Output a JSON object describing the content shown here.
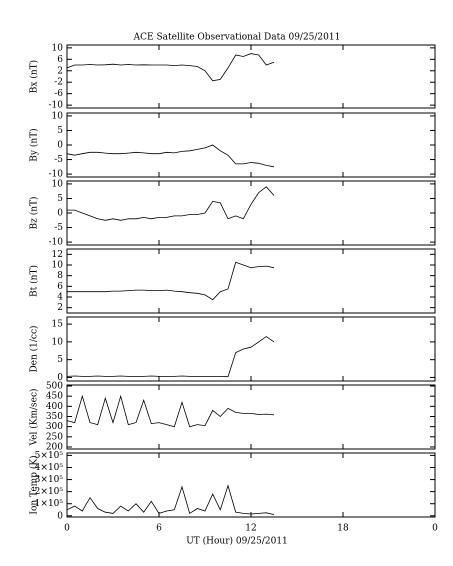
{
  "chart_data": [
    {
      "type": "line",
      "title": "ACE Satellite Observational Data   09/25/2011",
      "ylabel": "Bx (nT)",
      "color": "#000000",
      "x": [
        0,
        0.5,
        1,
        1.5,
        2,
        2.5,
        3,
        3.5,
        4,
        4.5,
        5,
        5.5,
        6,
        6.5,
        7,
        7.5,
        8,
        8.5,
        9,
        9.5,
        10,
        10.5,
        11,
        11.5,
        12,
        12.5,
        13,
        13.5
      ],
      "values": [
        3,
        4,
        4,
        4.2,
        4,
        4.1,
        4.3,
        4,
        4.2,
        4,
        4.1,
        4,
        4,
        4,
        3.8,
        4,
        3.8,
        3.5,
        2,
        -1.5,
        -1,
        3,
        7.5,
        7,
        8,
        7.5,
        4,
        5
      ],
      "xlim": [
        0,
        24
      ],
      "ylim": [
        -11,
        11
      ],
      "yticks": [
        -10,
        -6,
        -2,
        2,
        6,
        10
      ]
    },
    {
      "type": "line",
      "ylabel": "By (nT)",
      "color": "#000000",
      "x": [
        0,
        0.5,
        1,
        1.5,
        2,
        2.5,
        3,
        3.5,
        4,
        4.5,
        5,
        5.5,
        6,
        6.5,
        7,
        7.5,
        8,
        8.5,
        9,
        9.5,
        10,
        10.5,
        11,
        11.5,
        12,
        12.5,
        13,
        13.5
      ],
      "values": [
        -3,
        -3.5,
        -3,
        -2.5,
        -2.5,
        -2.8,
        -3,
        -3,
        -2.8,
        -2.5,
        -2.7,
        -3,
        -3,
        -2.5,
        -2.7,
        -2.2,
        -2,
        -1.5,
        -1,
        0,
        -2,
        -3.5,
        -6.5,
        -6.5,
        -6,
        -6.3,
        -7,
        -7.5
      ],
      "xlim": [
        0,
        24
      ],
      "ylim": [
        -11,
        11
      ],
      "yticks": [
        -10,
        -5,
        0,
        5,
        10
      ]
    },
    {
      "type": "line",
      "ylabel": "Bz (nT)",
      "color": "#000000",
      "x": [
        0,
        0.5,
        1,
        1.5,
        2,
        2.5,
        3,
        3.5,
        4,
        4.5,
        5,
        5.5,
        6,
        6.5,
        7,
        7.5,
        8,
        8.5,
        9,
        9.5,
        10,
        10.5,
        11,
        11.5,
        12,
        12.5,
        13,
        13.5
      ],
      "values": [
        1,
        1,
        0,
        -1,
        -2,
        -2.5,
        -2,
        -2.5,
        -2,
        -2,
        -1.5,
        -2,
        -1.5,
        -1.5,
        -1,
        -1,
        -0.5,
        -0.5,
        0,
        4,
        3.5,
        -2,
        -1,
        -2,
        3,
        7,
        9,
        6
      ],
      "xlim": [
        0,
        24
      ],
      "ylim": [
        -11,
        11
      ],
      "yticks": [
        -10,
        -5,
        0,
        5,
        10
      ]
    },
    {
      "type": "line",
      "ylabel": "Bt (nT)",
      "color": "#000000",
      "x": [
        0,
        0.5,
        1,
        1.5,
        2,
        2.5,
        3,
        3.5,
        4,
        4.5,
        5,
        5.5,
        6,
        6.5,
        7,
        7.5,
        8,
        8.5,
        9,
        9.5,
        10,
        10.5,
        11,
        11.5,
        12,
        12.5,
        13,
        13.5
      ],
      "values": [
        5,
        5,
        5,
        5,
        5,
        5,
        5.1,
        5.1,
        5.2,
        5.3,
        5.3,
        5.2,
        5.2,
        5.3,
        5.1,
        5,
        4.8,
        4.7,
        4.4,
        3.5,
        5,
        5.5,
        10.5,
        10,
        9.5,
        9.7,
        9.8,
        9.5
      ],
      "xlim": [
        0,
        24
      ],
      "ylim": [
        1,
        13
      ],
      "yticks": [
        2,
        4,
        6,
        8,
        10,
        12
      ]
    },
    {
      "type": "line",
      "ylabel": "Den (1/cc)",
      "color": "#000000",
      "x": [
        0,
        0.5,
        1,
        1.5,
        2,
        2.5,
        3,
        3.5,
        4,
        4.5,
        5,
        5.5,
        6,
        6.5,
        7,
        7.5,
        8,
        8.5,
        9,
        9.5,
        10,
        10.5,
        11,
        11.5,
        12,
        12.5,
        13,
        13.5
      ],
      "values": [
        0.3,
        0.4,
        0.3,
        0.3,
        0.4,
        0.3,
        0.3,
        0.4,
        0.3,
        0.3,
        0.3,
        0.4,
        0.3,
        0.3,
        0.3,
        0.4,
        0.3,
        0.3,
        0.3,
        0.3,
        0.3,
        0.2,
        7,
        8,
        8.5,
        10,
        11.5,
        10
      ],
      "xlim": [
        0,
        24
      ],
      "ylim": [
        -1,
        17
      ],
      "yticks": [
        0,
        5,
        10,
        15
      ]
    },
    {
      "type": "line",
      "ylabel": "Vel (Km/sec)",
      "color": "#000000",
      "x": [
        0,
        0.5,
        1,
        1.5,
        2,
        2.5,
        3,
        3.5,
        4,
        4.5,
        5,
        5.5,
        6,
        6.5,
        7,
        7.5,
        8,
        8.5,
        9,
        9.5,
        10,
        10.5,
        11,
        11.5,
        12,
        12.5,
        13,
        13.5
      ],
      "values": [
        330,
        320,
        450,
        320,
        310,
        440,
        320,
        450,
        310,
        320,
        430,
        315,
        320,
        310,
        300,
        420,
        300,
        310,
        305,
        380,
        350,
        390,
        370,
        365,
        365,
        360,
        362,
        358
      ],
      "xlim": [
        0,
        24
      ],
      "ylim": [
        190,
        505
      ],
      "yticks": [
        200,
        250,
        300,
        350,
        400,
        450,
        500
      ]
    },
    {
      "type": "line",
      "ylabel": "Ion Temp (K)",
      "color": "#000000",
      "xlabel": "UT (Hour)  09/25/2011",
      "x": [
        0,
        0.5,
        1,
        1.5,
        2,
        2.5,
        3,
        3.5,
        4,
        4.5,
        5,
        5.5,
        6,
        6.5,
        7,
        7.5,
        8,
        8.5,
        9,
        9.5,
        10,
        10.5,
        11,
        11.5,
        12,
        12.5,
        13,
        13.5
      ],
      "values": [
        50000,
        80000,
        40000,
        150000,
        60000,
        30000,
        20000,
        80000,
        40000,
        100000,
        30000,
        120000,
        20000,
        40000,
        50000,
        240000,
        20000,
        60000,
        40000,
        180000,
        50000,
        250000,
        30000,
        20000,
        15000,
        20000,
        25000,
        10000
      ],
      "xlim": [
        0,
        24
      ],
      "ylim": [
        -10000,
        520000
      ],
      "yticks": [
        0,
        {
          "value": 100000,
          "label": "1×10⁵"
        },
        {
          "value": 200000,
          "label": "2×10⁵"
        },
        {
          "value": 300000,
          "label": "3×10⁵"
        },
        {
          "value": 400000,
          "label": "4×10⁵"
        },
        {
          "value": 500000,
          "label": "5×10⁵"
        }
      ],
      "xticks": [
        0,
        6,
        12,
        18,
        {
          "value": 24,
          "label": "0"
        }
      ]
    }
  ]
}
